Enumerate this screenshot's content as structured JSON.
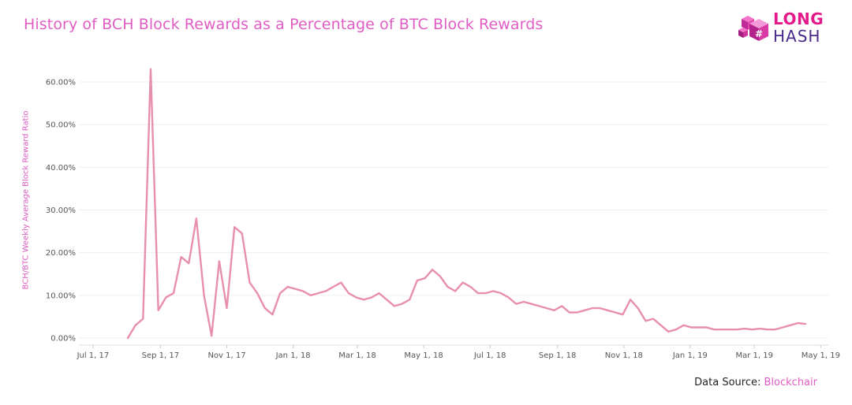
{
  "header": {
    "title": "History of BCH Block Rewards as a Percentage of BTC Block Rewards"
  },
  "logo": {
    "line1": "LONG",
    "line2": "HASH"
  },
  "source": {
    "label": "Data Source:",
    "name": "Blockchair"
  },
  "colors": {
    "line": "#e88fb0",
    "title": "#e05dc4",
    "grid": "#efefef"
  },
  "chart_data": {
    "type": "line",
    "title": "History of BCH Block Rewards as a Percentage of BTC Block Rewards",
    "xlabel": "",
    "ylabel": "BCH/BTC Weekly Average Block Reward Ratio",
    "ylim": [
      0,
      0.66
    ],
    "xlim": [
      "2017-06-18",
      "2019-05-08"
    ],
    "grid": true,
    "legend": "none",
    "yticks": [
      0,
      0.1,
      0.2,
      0.3,
      0.4,
      0.5,
      0.6
    ],
    "ytick_labels": [
      "0.00%",
      "10.00%",
      "20.00%",
      "30.00%",
      "40.00%",
      "50.00%",
      "60.00%"
    ],
    "xticks": [
      "2017-07-01",
      "2017-09-01",
      "2017-11-01",
      "2018-01-01",
      "2018-03-01",
      "2018-05-01",
      "2018-07-01",
      "2018-09-01",
      "2018-11-01",
      "2019-01-01",
      "2019-03-01",
      "2019-05-01"
    ],
    "xtick_labels": [
      "Jul 1, 17",
      "Sep 1, 17",
      "Nov 1, 17",
      "Jan 1, 18",
      "Mar 1, 18",
      "May 1, 18",
      "Jul 1, 18",
      "Sep 1, 18",
      "Nov 1, 18",
      "Jan 1, 19",
      "Mar 1, 19",
      "May 1, 19"
    ],
    "x": [
      "2017-08-02",
      "2017-08-09",
      "2017-08-16",
      "2017-08-23",
      "2017-08-30",
      "2017-09-06",
      "2017-09-13",
      "2017-09-20",
      "2017-09-27",
      "2017-10-04",
      "2017-10-11",
      "2017-10-18",
      "2017-10-25",
      "2017-11-01",
      "2017-11-08",
      "2017-11-15",
      "2017-11-22",
      "2017-11-29",
      "2017-12-06",
      "2017-12-13",
      "2017-12-20",
      "2017-12-27",
      "2018-01-03",
      "2018-01-10",
      "2018-01-17",
      "2018-01-24",
      "2018-01-31",
      "2018-02-07",
      "2018-02-14",
      "2018-02-21",
      "2018-02-28",
      "2018-03-07",
      "2018-03-14",
      "2018-03-21",
      "2018-03-28",
      "2018-04-04",
      "2018-04-11",
      "2018-04-18",
      "2018-04-25",
      "2018-05-02",
      "2018-05-09",
      "2018-05-16",
      "2018-05-23",
      "2018-05-30",
      "2018-06-06",
      "2018-06-13",
      "2018-06-20",
      "2018-06-27",
      "2018-07-04",
      "2018-07-11",
      "2018-07-18",
      "2018-07-25",
      "2018-08-01",
      "2018-08-08",
      "2018-08-15",
      "2018-08-22",
      "2018-08-29",
      "2018-09-05",
      "2018-09-12",
      "2018-09-19",
      "2018-09-26",
      "2018-10-03",
      "2018-10-10",
      "2018-10-17",
      "2018-10-24",
      "2018-10-31",
      "2018-11-07",
      "2018-11-14",
      "2018-11-21",
      "2018-11-28",
      "2018-12-05",
      "2018-12-12",
      "2018-12-19",
      "2018-12-26",
      "2019-01-02",
      "2019-01-09",
      "2019-01-16",
      "2019-01-23",
      "2019-01-30",
      "2019-02-06",
      "2019-02-13",
      "2019-02-20",
      "2019-02-27",
      "2019-03-06",
      "2019-03-13",
      "2019-03-20",
      "2019-03-27",
      "2019-04-03",
      "2019-04-10",
      "2019-04-17"
    ],
    "series": [
      {
        "values": [
          0.0,
          0.03,
          0.045,
          0.63,
          0.065,
          0.095,
          0.105,
          0.19,
          0.175,
          0.28,
          0.1,
          0.005,
          0.18,
          0.07,
          0.26,
          0.245,
          0.13,
          0.105,
          0.07,
          0.055,
          0.105,
          0.12,
          0.115,
          0.11,
          0.1,
          0.105,
          0.11,
          0.12,
          0.13,
          0.105,
          0.095,
          0.09,
          0.095,
          0.105,
          0.09,
          0.075,
          0.08,
          0.09,
          0.135,
          0.14,
          0.16,
          0.145,
          0.12,
          0.11,
          0.13,
          0.12,
          0.105,
          0.105,
          0.11,
          0.105,
          0.095,
          0.08,
          0.085,
          0.08,
          0.075,
          0.07,
          0.065,
          0.075,
          0.06,
          0.06,
          0.065,
          0.07,
          0.07,
          0.065,
          0.06,
          0.055,
          0.09,
          0.07,
          0.04,
          0.045,
          0.03,
          0.015,
          0.02,
          0.03,
          0.025,
          0.025,
          0.025,
          0.02,
          0.02,
          0.02,
          0.02,
          0.022,
          0.02,
          0.022,
          0.02,
          0.02,
          0.025,
          0.03,
          0.035,
          0.033
        ]
      }
    ]
  }
}
